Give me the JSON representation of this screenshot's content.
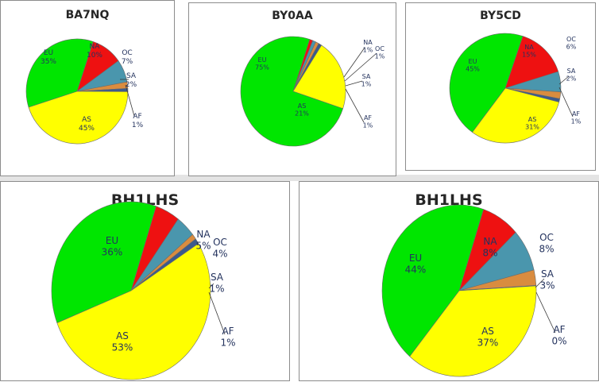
{
  "chart_data": [
    {
      "type": "pie",
      "title": "BA7NQ",
      "slices": [
        {
          "label": "NA",
          "value": 10,
          "display": "10%",
          "color": "#ee1111"
        },
        {
          "label": "OC",
          "value": 7,
          "display": "7%",
          "color": "#4a96ad"
        },
        {
          "label": "SA",
          "value": 2,
          "display": "2%",
          "color": "#d98c3f"
        },
        {
          "label": "AF",
          "value": 1,
          "display": "1%",
          "color": "#3c5a8c"
        },
        {
          "label": "AS",
          "value": 45,
          "display": "45%",
          "color": "#ffff00"
        },
        {
          "label": "EU",
          "value": 35,
          "display": "35%",
          "color": "#00e600"
        }
      ]
    },
    {
      "type": "pie",
      "title": "BY0AA",
      "slices": [
        {
          "label": "NA",
          "value": 1,
          "display": "1%",
          "color": "#ee1111"
        },
        {
          "label": "OC",
          "value": 1,
          "display": "1%",
          "color": "#4a96ad"
        },
        {
          "label": "SA",
          "value": 1,
          "display": "1%",
          "color": "#d98c3f"
        },
        {
          "label": "AF",
          "value": 1,
          "display": "1%",
          "color": "#3c5a8c"
        },
        {
          "label": "AS",
          "value": 21,
          "display": "21%",
          "color": "#ffff00"
        },
        {
          "label": "EU",
          "value": 75,
          "display": "75%",
          "color": "#00e600"
        }
      ]
    },
    {
      "type": "pie",
      "title": "BY5CD",
      "slices": [
        {
          "label": "NA",
          "value": 15,
          "display": "15%",
          "color": "#ee1111"
        },
        {
          "label": "OC",
          "value": 6,
          "display": "6%",
          "color": "#4a96ad"
        },
        {
          "label": "SA",
          "value": 2,
          "display": "2%",
          "color": "#d98c3f"
        },
        {
          "label": "AF",
          "value": 1,
          "display": "1%",
          "color": "#3c5a8c"
        },
        {
          "label": "AS",
          "value": 31,
          "display": "31%",
          "color": "#ffff00"
        },
        {
          "label": "EU",
          "value": 45,
          "display": "45%",
          "color": "#00e600"
        }
      ]
    },
    {
      "type": "pie",
      "title": "BH1LHS",
      "slices": [
        {
          "label": "NA",
          "value": 5,
          "display": "5%",
          "color": "#ee1111"
        },
        {
          "label": "OC",
          "value": 4,
          "display": "4%",
          "color": "#4a96ad"
        },
        {
          "label": "SA",
          "value": 1,
          "display": "1%",
          "color": "#d98c3f"
        },
        {
          "label": "AF",
          "value": 1,
          "display": "1%",
          "color": "#3c5a8c"
        },
        {
          "label": "AS",
          "value": 53,
          "display": "53%",
          "color": "#ffff00"
        },
        {
          "label": "EU",
          "value": 36,
          "display": "36%",
          "color": "#00e600"
        }
      ]
    },
    {
      "type": "pie",
      "title": "BH1LHS",
      "slices": [
        {
          "label": "NA",
          "value": 8,
          "display": "8%",
          "color": "#ee1111"
        },
        {
          "label": "OC",
          "value": 8,
          "display": "8%",
          "color": "#4a96ad"
        },
        {
          "label": "SA",
          "value": 3,
          "display": "3%",
          "color": "#d98c3f"
        },
        {
          "label": "AF",
          "value": 0,
          "display": "0%",
          "color": "#3c5a8c"
        },
        {
          "label": "AS",
          "value": 37,
          "display": "37%",
          "color": "#ffff00"
        },
        {
          "label": "EU",
          "value": 44,
          "display": "44%",
          "color": "#00e600"
        }
      ]
    }
  ]
}
